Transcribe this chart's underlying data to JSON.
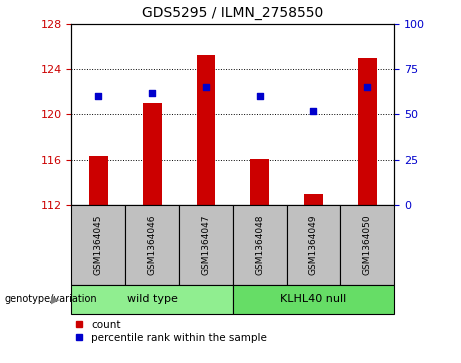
{
  "title": "GDS5295 / ILMN_2758550",
  "categories": [
    "GSM1364045",
    "GSM1364046",
    "GSM1364047",
    "GSM1364048",
    "GSM1364049",
    "GSM1364050"
  ],
  "bar_heights": [
    116.3,
    121.0,
    125.2,
    116.1,
    113.0,
    125.0
  ],
  "bar_bottom": 112,
  "percentile_values": [
    60,
    62,
    65,
    60,
    52,
    65
  ],
  "ylim_left": [
    112,
    128
  ],
  "ylim_right": [
    0,
    100
  ],
  "yticks_left": [
    112,
    116,
    120,
    124,
    128
  ],
  "yticks_right": [
    0,
    25,
    50,
    75,
    100
  ],
  "bar_color": "#cc0000",
  "dot_color": "#0000cc",
  "wild_type_label": "wild type",
  "klhl40_label": "KLHL40 null",
  "wild_type_color": "#90ee90",
  "klhl40_color": "#66dd66",
  "genotype_label": "genotype/variation",
  "legend_count_label": "count",
  "legend_percentile_label": "percentile rank within the sample",
  "bar_width": 0.35,
  "ylabel_left_color": "#cc0000",
  "ylabel_right_color": "#0000cc",
  "sample_box_color": "#c0c0c0",
  "grid_ticks": [
    116,
    120,
    124
  ]
}
